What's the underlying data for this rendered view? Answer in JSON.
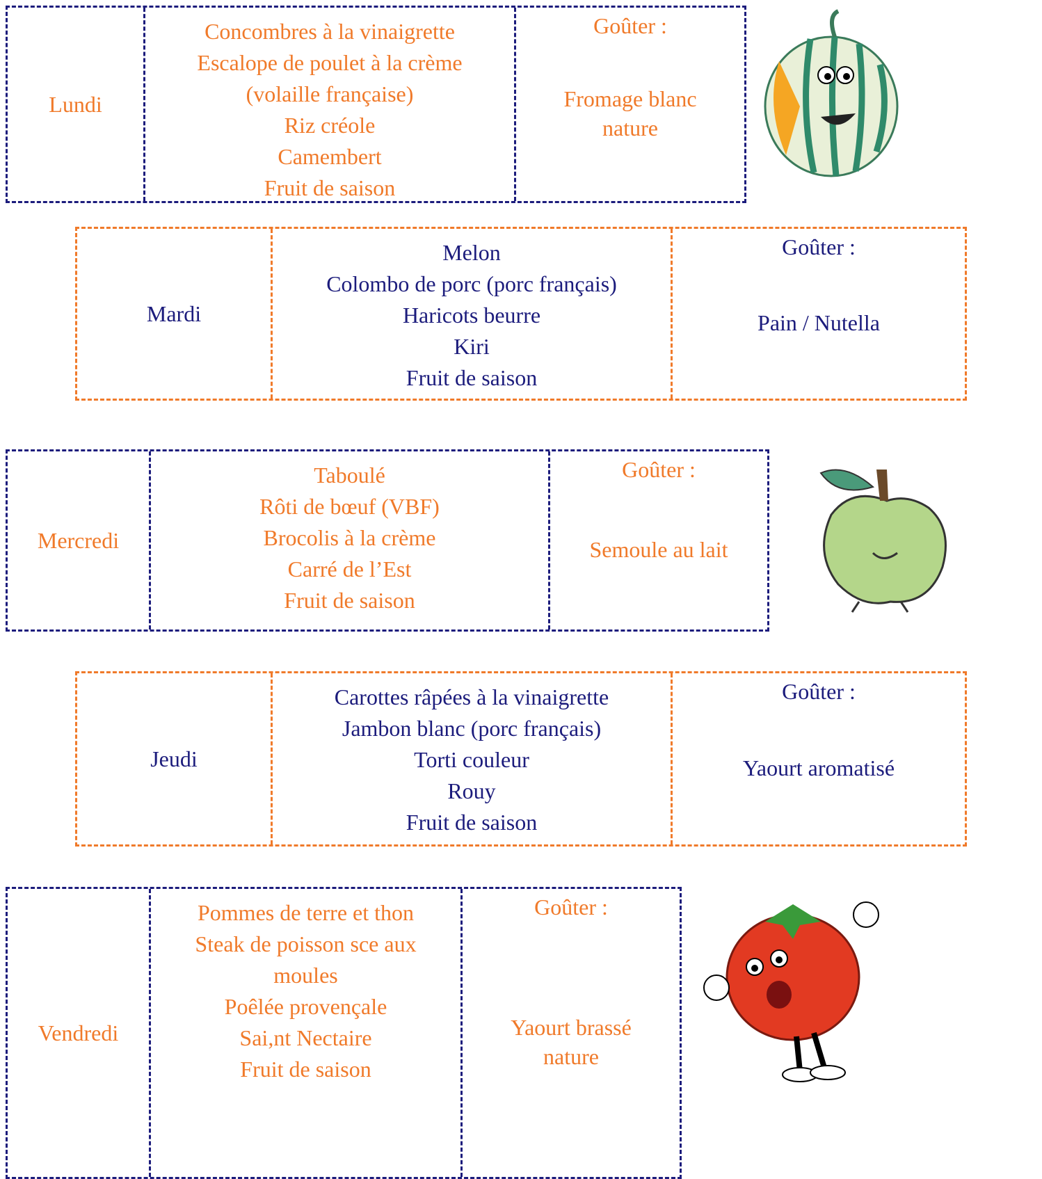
{
  "days": [
    {
      "day": "Lundi",
      "menu": [
        "Concombres à la vinaigrette",
        "Escalope de poulet à la crème (volaille française)",
        "Riz créole",
        "Camembert",
        "Fruit de saison"
      ],
      "snack_label": "Goûter :",
      "snack": "Fromage blanc nature"
    },
    {
      "day": "Mardi",
      "menu": [
        "Melon",
        "Colombo de porc (porc français)",
        "Haricots beurre",
        "Kiri",
        "Fruit de saison"
      ],
      "snack_label": "Goûter :",
      "snack": "Pain / Nutella"
    },
    {
      "day": "Mercredi",
      "menu": [
        "Taboulé",
        "Rôti de bœuf (VBF)",
        "Brocolis à la crème",
        "Carré de l’Est",
        "Fruit de saison"
      ],
      "snack_label": "Goûter :",
      "snack": "Semoule au lait"
    },
    {
      "day": "Jeudi",
      "menu": [
        "Carottes râpées à la vinaigrette",
        "Jambon blanc (porc français)",
        "Torti couleur",
        "Rouy",
        "Fruit de saison"
      ],
      "snack_label": "Goûter :",
      "snack": "Yaourt aromatisé"
    },
    {
      "day": "Vendredi",
      "menu": [
        "Pommes de terre et thon",
        "Steak de poisson sce aux moules",
        "Poêlée provençale",
        "Sai,nt Nectaire",
        "Fruit de saison"
      ],
      "snack_label": "Goûter :",
      "snack": "Yaourt brassé nature"
    }
  ]
}
